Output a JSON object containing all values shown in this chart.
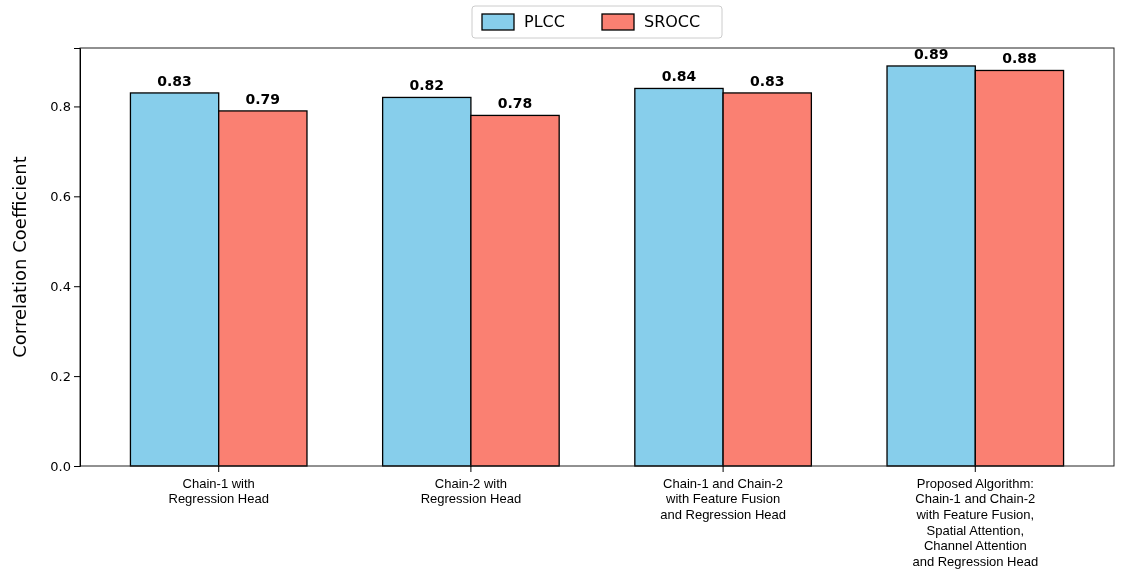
{
  "chart_data": {
    "type": "bar",
    "ylabel": "Correlation Coefficient",
    "categories": [
      "Chain-1 with\nRegression Head",
      "Chain-2 with\nRegression Head",
      "Chain-1 and Chain-2\nwith Feature Fusion\nand Regression Head",
      "Proposed Algorithm:\nChain-1 and Chain-2\nwith Feature Fusion,\nSpatial Attention,\nChannel Attention\nand Regression Head"
    ],
    "series": [
      {
        "name": "PLCC",
        "color": "#87ceeb",
        "values": [
          0.83,
          0.82,
          0.84,
          0.89
        ]
      },
      {
        "name": "SROCC",
        "color": "#fa8072",
        "values": [
          0.79,
          0.78,
          0.83,
          0.88
        ]
      }
    ],
    "ylim": [
      0,
      0.93
    ],
    "yticks": [
      {
        "value": 0,
        "label": "0.0"
      },
      {
        "value": 0.2,
        "label": "0.2"
      },
      {
        "value": 0.4,
        "label": "0.4"
      },
      {
        "value": 0.6,
        "label": "0.6"
      },
      {
        "value": 0.8,
        "label": "0.8"
      }
    ],
    "data_labels": true,
    "legend": "top",
    "grid": false
  }
}
